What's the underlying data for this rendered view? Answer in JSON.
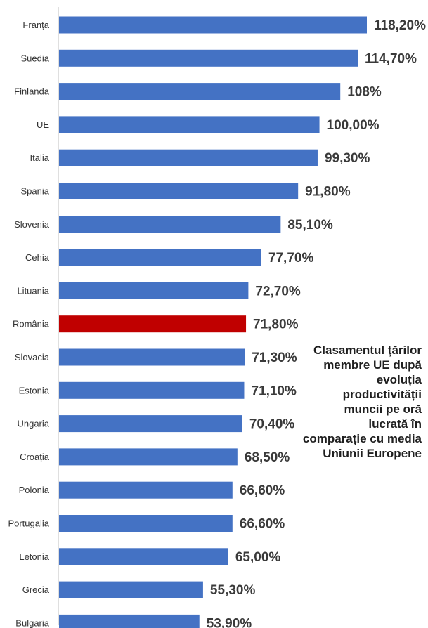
{
  "chart_data": {
    "type": "bar",
    "orientation": "horizontal",
    "title": "Clasamentul țărilor membre UE după evoluția productivității muncii pe oră lucrată în comparație cu media Uniunii Europene",
    "categories": [
      "Franța",
      "Suedia",
      "Finlanda",
      "UE",
      "Italia",
      "Spania",
      "Slovenia",
      "Cehia",
      "Lituania",
      "România",
      "Slovacia",
      "Estonia",
      "Ungaria",
      "Croația",
      "Polonia",
      "Portugalia",
      "Letonia",
      "Grecia",
      "Bulgaria"
    ],
    "values": [
      118.2,
      114.7,
      108,
      100,
      99.3,
      91.8,
      85.1,
      77.7,
      72.7,
      71.8,
      71.3,
      71.1,
      70.4,
      68.5,
      66.6,
      66.6,
      65.0,
      55.3,
      53.9
    ],
    "value_labels": [
      "118,20%",
      "114,70%",
      "108%",
      "100,00%",
      "99,30%",
      "91,80%",
      "85,10%",
      "77,70%",
      "72,70%",
      "71,80%",
      "71,30%",
      "71,10%",
      "70,40%",
      "68,50%",
      "66,60%",
      "66,60%",
      "65,00%",
      "55,30%",
      "53,90%"
    ],
    "highlight": "România",
    "colors": {
      "bar": "#4472c4",
      "highlight": "#c00000"
    },
    "xlim": [
      0,
      125
    ],
    "grid": false,
    "legend": "none"
  }
}
